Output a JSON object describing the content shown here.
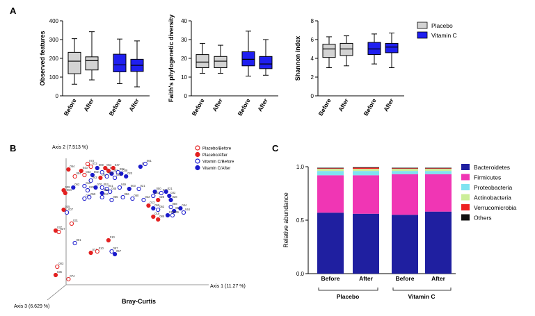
{
  "panel_labels": {
    "a": "A",
    "b": "B",
    "c": "C"
  },
  "colors": {
    "placebo": "#d3d3d3",
    "vitaminc": "#1f1ff0",
    "placebo_point": "#e32020",
    "vitaminc_point": "#1a1acc"
  },
  "chart_data": [
    {
      "type": "box",
      "panel": "A1",
      "ylabel": "Observed features",
      "ylim": [
        0,
        400
      ],
      "yticks": [
        0,
        100,
        200,
        300,
        400
      ],
      "categories": [
        "Before",
        "After",
        "Before",
        "After"
      ],
      "groups": [
        "Placebo",
        "Placebo",
        "Vitamin C",
        "Vitamin C"
      ],
      "boxes": [
        {
          "min": 62,
          "q1": 118,
          "median": 185,
          "q3": 232,
          "max": 305
        },
        {
          "min": 85,
          "q1": 138,
          "median": 188,
          "q3": 208,
          "max": 342
        },
        {
          "min": 65,
          "q1": 128,
          "median": 165,
          "q3": 222,
          "max": 303
        },
        {
          "min": 48,
          "q1": 130,
          "median": 163,
          "q3": 195,
          "max": 293
        }
      ]
    },
    {
      "type": "box",
      "panel": "A2",
      "ylabel": "Faith's phylogenetic diversity",
      "ylim": [
        0,
        40
      ],
      "yticks": [
        0,
        10,
        20,
        30,
        40
      ],
      "categories": [
        "Before",
        "After",
        "Before",
        "After"
      ],
      "groups": [
        "Placebo",
        "Placebo",
        "Vitamin C",
        "Vitamin C"
      ],
      "boxes": [
        {
          "min": 12,
          "q1": 15,
          "median": 18,
          "q3": 22,
          "max": 28
        },
        {
          "min": 12,
          "q1": 15,
          "median": 18.5,
          "q3": 21,
          "max": 27
        },
        {
          "min": 10.5,
          "q1": 16,
          "median": 19.5,
          "q3": 23.5,
          "max": 34.5
        },
        {
          "min": 11,
          "q1": 14.5,
          "median": 17,
          "q3": 21,
          "max": 30
        }
      ]
    },
    {
      "type": "box",
      "panel": "A3",
      "ylabel": "Shannon index",
      "ylim": [
        0,
        8
      ],
      "yticks": [
        0,
        2,
        4,
        6,
        8
      ],
      "categories": [
        "Before",
        "After",
        "Before",
        "After"
      ],
      "groups": [
        "Placebo",
        "Placebo",
        "Vitamin C",
        "Vitamin C"
      ],
      "legend": [
        {
          "name": "Placebo",
          "color": "#d3d3d3"
        },
        {
          "name": "Vitamin C",
          "color": "#1f1ff0"
        }
      ],
      "boxes": [
        {
          "min": 3.0,
          "q1": 4.1,
          "median": 5.0,
          "q3": 5.5,
          "max": 6.3
        },
        {
          "min": 3.2,
          "q1": 4.3,
          "median": 5.0,
          "q3": 5.6,
          "max": 6.4
        },
        {
          "min": 3.4,
          "q1": 4.4,
          "median": 5.0,
          "q3": 5.7,
          "max": 6.6
        },
        {
          "min": 3.0,
          "q1": 4.6,
          "median": 5.2,
          "q3": 5.6,
          "max": 6.7
        }
      ]
    },
    {
      "type": "scatter",
      "panel": "B",
      "title": "Bray-Curtis",
      "axis_labels": {
        "x": "Axis 1 (11.27 %)",
        "y": "Axis 2 (7.513 %)",
        "z": "Axis 3 (6.629 %)"
      },
      "legend": [
        {
          "name": "Placebo/Before",
          "color": "#e32020",
          "filled": false
        },
        {
          "name": "Placebo/After",
          "color": "#e32020",
          "filled": true
        },
        {
          "name": "Vitamin C/Before",
          "color": "#1a1acc",
          "filled": false
        },
        {
          "name": "Vitamin C/After",
          "color": "#1a1acc",
          "filled": true
        }
      ],
      "points": [
        {
          "x": 0.08,
          "y": 0.93,
          "label": "054",
          "group": 1
        },
        {
          "x": 0.12,
          "y": 0.88,
          "label": "054",
          "group": 0
        },
        {
          "x": 0.16,
          "y": 0.92,
          "label": "043",
          "group": 1
        },
        {
          "x": 0.18,
          "y": 0.89,
          "label": "043",
          "group": 0
        },
        {
          "x": 0.2,
          "y": 0.97,
          "label": "073",
          "group": 0
        },
        {
          "x": 0.22,
          "y": 0.95,
          "label": "073",
          "group": 0
        },
        {
          "x": 0.26,
          "y": 0.94,
          "label": "009",
          "group": 3
        },
        {
          "x": 0.29,
          "y": 0.91,
          "label": "006",
          "group": 2
        },
        {
          "x": 0.31,
          "y": 0.94,
          "label": "054",
          "group": 1
        },
        {
          "x": 0.33,
          "y": 0.92,
          "label": "013",
          "group": 1
        },
        {
          "x": 0.36,
          "y": 0.94,
          "label": "047",
          "group": 1
        },
        {
          "x": 0.35,
          "y": 0.9,
          "label": "003",
          "group": 3
        },
        {
          "x": 0.39,
          "y": 0.91,
          "label": "038",
          "group": 2
        },
        {
          "x": 0.41,
          "y": 0.9,
          "label": "038",
          "group": 3
        },
        {
          "x": 0.44,
          "y": 0.88,
          "label": "023",
          "group": 3
        },
        {
          "x": 0.23,
          "y": 0.89,
          "label": "002",
          "group": 3
        },
        {
          "x": 0.28,
          "y": 0.87,
          "label": "004",
          "group": 1
        },
        {
          "x": 0.32,
          "y": 0.88,
          "label": "048",
          "group": 2
        },
        {
          "x": 0.37,
          "y": 0.87,
          "label": "049",
          "group": 2
        },
        {
          "x": 0.22,
          "y": 0.85,
          "label": "042",
          "group": 2
        },
        {
          "x": 0.53,
          "y": 0.95,
          "label": "061",
          "group": 3
        },
        {
          "x": 0.56,
          "y": 0.97,
          "label": "061",
          "group": 2
        },
        {
          "x": 0.05,
          "y": 0.78,
          "label": "009",
          "group": 1
        },
        {
          "x": 0.06,
          "y": 0.76,
          "label": "064",
          "group": 1
        },
        {
          "x": 0.11,
          "y": 0.8,
          "label": "062",
          "group": 3
        },
        {
          "x": 0.18,
          "y": 0.81,
          "label": "015",
          "group": 2
        },
        {
          "x": 0.2,
          "y": 0.78,
          "label": "020",
          "group": 2
        },
        {
          "x": 0.25,
          "y": 0.8,
          "label": "070",
          "group": 3
        },
        {
          "x": 0.29,
          "y": 0.8,
          "label": "053",
          "group": 2
        },
        {
          "x": 0.32,
          "y": 0.79,
          "label": "041",
          "group": 2
        },
        {
          "x": 0.34,
          "y": 0.77,
          "label": "045",
          "group": 2
        },
        {
          "x": 0.29,
          "y": 0.76,
          "label": "030",
          "group": 3
        },
        {
          "x": 0.4,
          "y": 0.8,
          "label": "049",
          "group": 2
        },
        {
          "x": 0.46,
          "y": 0.79,
          "label": "003",
          "group": 3
        },
        {
          "x": 0.52,
          "y": 0.79,
          "label": "021",
          "group": 2
        },
        {
          "x": 0.18,
          "y": 0.72,
          "label": "038",
          "group": 2
        },
        {
          "x": 0.21,
          "y": 0.73,
          "label": "059",
          "group": 2
        },
        {
          "x": 0.29,
          "y": 0.73,
          "label": "034",
          "group": 2
        },
        {
          "x": 0.35,
          "y": 0.71,
          "label": "055",
          "group": 2
        },
        {
          "x": 0.42,
          "y": 0.73,
          "label": "056",
          "group": 2
        },
        {
          "x": 0.48,
          "y": 0.72,
          "label": "060",
          "group": 2
        },
        {
          "x": 0.55,
          "y": 0.71,
          "label": "022",
          "group": 2
        },
        {
          "x": 0.62,
          "y": 0.77,
          "label": "050",
          "group": 3
        },
        {
          "x": 0.66,
          "y": 0.76,
          "label": "025",
          "group": 2
        },
        {
          "x": 0.69,
          "y": 0.77,
          "label": "021",
          "group": 3
        },
        {
          "x": 0.61,
          "y": 0.74,
          "label": "022",
          "group": 2
        },
        {
          "x": 0.64,
          "y": 0.71,
          "label": "026",
          "group": 1
        },
        {
          "x": 0.71,
          "y": 0.74,
          "label": "032",
          "group": 3
        },
        {
          "x": 0.72,
          "y": 0.71,
          "label": "028",
          "group": 3
        },
        {
          "x": 0.58,
          "y": 0.67,
          "label": "013",
          "group": 1
        },
        {
          "x": 0.61,
          "y": 0.65,
          "label": "059",
          "group": 3
        },
        {
          "x": 0.64,
          "y": 0.64,
          "label": "062",
          "group": 2
        },
        {
          "x": 0.72,
          "y": 0.66,
          "label": "058",
          "group": 2
        },
        {
          "x": 0.74,
          "y": 0.63,
          "label": "059",
          "group": 3
        },
        {
          "x": 0.78,
          "y": 0.65,
          "label": "044",
          "group": 3
        },
        {
          "x": 0.8,
          "y": 0.62,
          "label": "044",
          "group": 2
        },
        {
          "x": 0.7,
          "y": 0.6,
          "label": "016",
          "group": 3
        },
        {
          "x": 0.73,
          "y": 0.6,
          "label": "039",
          "group": 2
        },
        {
          "x": 0.61,
          "y": 0.59,
          "label": "018",
          "group": 1
        },
        {
          "x": 0.64,
          "y": 0.57,
          "label": "085",
          "group": 1
        },
        {
          "x": 0.05,
          "y": 0.64,
          "label": "035",
          "group": 1
        },
        {
          "x": 0.07,
          "y": 0.62,
          "label": "007",
          "group": 2
        },
        {
          "x": 0.1,
          "y": 0.54,
          "label": "031",
          "group": 0
        },
        {
          "x": 0.0,
          "y": 0.49,
          "label": "037",
          "group": 1
        },
        {
          "x": 0.02,
          "y": 0.48,
          "label": "037",
          "group": 0
        },
        {
          "x": 0.12,
          "y": 0.4,
          "label": "001",
          "group": 2
        },
        {
          "x": 0.33,
          "y": 0.42,
          "label": "010",
          "group": 1
        },
        {
          "x": 0.22,
          "y": 0.33,
          "label": "074",
          "group": 1
        },
        {
          "x": 0.26,
          "y": 0.34,
          "label": "010",
          "group": 0
        },
        {
          "x": 0.35,
          "y": 0.34,
          "label": "057",
          "group": 2
        },
        {
          "x": 0.37,
          "y": 0.32,
          "label": "057",
          "group": 3
        },
        {
          "x": 0.01,
          "y": 0.23,
          "label": "003",
          "group": 0
        },
        {
          "x": 0.0,
          "y": 0.17,
          "label": "035",
          "group": 1
        },
        {
          "x": 0.08,
          "y": 0.14,
          "label": "074",
          "group": 0
        }
      ]
    },
    {
      "type": "bar",
      "stacked": true,
      "panel": "C",
      "ylabel": "Relative abundance",
      "ylim": [
        0,
        1.0
      ],
      "yticks": [
        "0.0",
        "0.5",
        "1.0"
      ],
      "categories": [
        "Before",
        "After",
        "Before",
        "After"
      ],
      "groups": [
        "Placebo",
        "Vitamin C"
      ],
      "series": [
        {
          "name": "Bacteroidetes",
          "color": "#1f1fa0",
          "values": [
            0.57,
            0.56,
            0.55,
            0.58
          ]
        },
        {
          "name": "Firmicutes",
          "color": "#f036b4",
          "values": [
            0.35,
            0.36,
            0.38,
            0.35
          ]
        },
        {
          "name": "Proteobacteria",
          "color": "#7fe3f0",
          "values": [
            0.04,
            0.04,
            0.03,
            0.03
          ]
        },
        {
          "name": "Actinobacteria",
          "color": "#ccee99",
          "values": [
            0.02,
            0.02,
            0.02,
            0.02
          ]
        },
        {
          "name": "Verrucomicrobia",
          "color": "#ee2222",
          "values": [
            0.005,
            0.01,
            0.005,
            0.005
          ]
        },
        {
          "name": "Others",
          "color": "#111111",
          "values": [
            0.005,
            0.005,
            0.005,
            0.005
          ]
        }
      ]
    }
  ]
}
